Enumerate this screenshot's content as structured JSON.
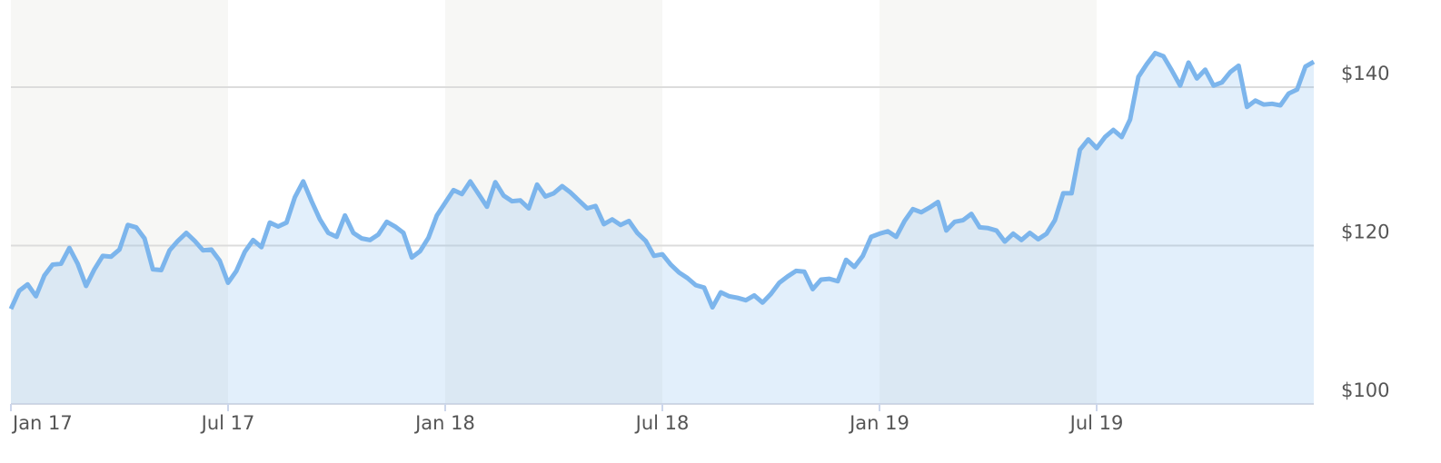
{
  "chart_data": {
    "type": "line",
    "color": "#7cb5ec",
    "area": true,
    "grid": true,
    "shaded_bands": true,
    "categories": [
      "Jan 17",
      null,
      null,
      null,
      null,
      null,
      null,
      null,
      null,
      null,
      null,
      null,
      null,
      null,
      null,
      null,
      null,
      null,
      null,
      null,
      null,
      null,
      null,
      null,
      null,
      null,
      "Jul 17",
      null,
      null,
      null,
      null,
      null,
      null,
      null,
      null,
      null,
      null,
      null,
      null,
      null,
      null,
      null,
      null,
      null,
      null,
      null,
      null,
      null,
      null,
      null,
      null,
      null,
      "Jan 18",
      null,
      null,
      null,
      null,
      null,
      null,
      null,
      null,
      null,
      null,
      null,
      null,
      null,
      null,
      null,
      null,
      null,
      null,
      null,
      null,
      null,
      null,
      null,
      null,
      null,
      "Jul 18",
      null,
      null,
      null,
      null,
      null,
      null,
      null,
      null,
      null,
      null,
      null,
      null,
      null,
      null,
      null,
      null,
      null,
      null,
      null,
      null,
      null,
      null,
      null,
      null,
      null,
      "Jan 19",
      null,
      null,
      null,
      null,
      null,
      null,
      null,
      null,
      null,
      null,
      null,
      null,
      null,
      null,
      null,
      null,
      null,
      null,
      null,
      null,
      null,
      null,
      null,
      null,
      null,
      "Jul 19",
      null,
      null,
      null,
      null,
      null,
      null,
      null,
      null,
      null,
      null,
      null,
      null,
      null,
      null,
      null,
      null,
      null,
      null,
      null,
      null,
      null,
      null,
      null,
      null,
      null,
      null
    ],
    "values": [
      112.0,
      114.3,
      115.1,
      113.6,
      116.2,
      117.6,
      117.7,
      119.7,
      117.7,
      114.9,
      117.0,
      118.7,
      118.6,
      119.5,
      122.6,
      122.3,
      120.9,
      117.0,
      116.9,
      119.4,
      120.6,
      121.6,
      120.6,
      119.4,
      119.5,
      118.1,
      115.3,
      116.8,
      119.2,
      120.7,
      119.8,
      122.9,
      122.4,
      122.9,
      126.1,
      128.1,
      125.6,
      123.3,
      121.6,
      121.1,
      123.8,
      121.6,
      120.9,
      120.7,
      121.4,
      123.0,
      122.4,
      121.6,
      118.5,
      119.3,
      121.0,
      123.8,
      125.4,
      127.0,
      126.5,
      128.1,
      126.5,
      124.9,
      128.0,
      126.3,
      125.6,
      125.7,
      124.7,
      127.7,
      126.2,
      126.6,
      127.5,
      126.7,
      125.7,
      124.7,
      125.0,
      122.7,
      123.3,
      122.6,
      123.1,
      121.6,
      120.6,
      118.7,
      118.9,
      117.6,
      116.6,
      115.9,
      115.0,
      114.7,
      112.2,
      114.1,
      113.6,
      113.4,
      113.1,
      113.7,
      112.8,
      113.9,
      115.3,
      116.1,
      116.8,
      116.7,
      114.5,
      115.7,
      115.8,
      115.5,
      118.2,
      117.3,
      118.7,
      121.1,
      121.5,
      121.8,
      121.1,
      123.1,
      124.6,
      124.2,
      124.8,
      125.5,
      121.9,
      123.0,
      123.2,
      124.0,
      122.3,
      122.2,
      121.9,
      120.5,
      121.5,
      120.7,
      121.6,
      120.8,
      121.5,
      123.2,
      126.6,
      126.6,
      132.1,
      133.4,
      132.3,
      133.7,
      134.6,
      133.7,
      135.9,
      141.3,
      142.9,
      144.3,
      143.9,
      142.1,
      140.2,
      143.1,
      141.1,
      142.2,
      140.2,
      140.6,
      141.9,
      142.7,
      137.5,
      138.3,
      137.8,
      137.9,
      137.7,
      139.2,
      139.7,
      142.6,
      143.2
    ],
    "ylim": [
      100,
      151
    ],
    "yticks": [
      {
        "value": 100,
        "label": "$100"
      },
      {
        "value": 120,
        "label": "$120"
      },
      {
        "value": 140,
        "label": "$140"
      }
    ]
  }
}
